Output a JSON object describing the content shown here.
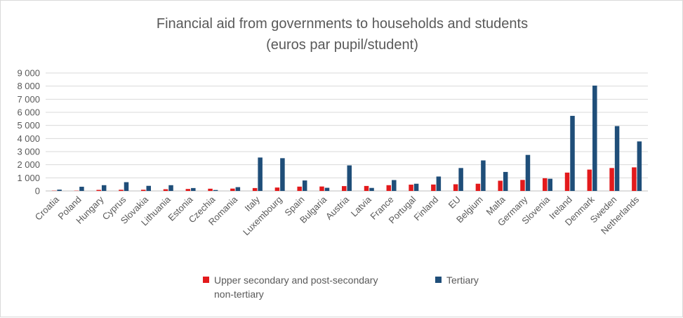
{
  "chart_data": {
    "type": "bar",
    "title": "Financial aid from governments to households and students",
    "subtitle": "(euros par pupil/student)",
    "categories": [
      "Croatia",
      "Poland",
      "Hungary",
      "Cyprus",
      "Slovakia",
      "Lithuania",
      "Estonia",
      "Czechia",
      "Romania",
      "Italy",
      "Luxembourg",
      "Spain",
      "Bulgaria",
      "Austria",
      "Latvia",
      "France",
      "Portugal",
      "Finland",
      "EU",
      "Belgium",
      "Malta",
      "Germany",
      "Slovenia",
      "Ireland",
      "Denmark",
      "Sweden",
      "Netherlands"
    ],
    "series": [
      {
        "name": "Upper secondary and post-secondary non-tertiary",
        "color": "#e31a1c",
        "values": [
          20,
          20,
          80,
          90,
          90,
          130,
          150,
          170,
          180,
          220,
          260,
          330,
          340,
          370,
          380,
          440,
          480,
          490,
          510,
          550,
          780,
          840,
          970,
          1400,
          1630,
          1750,
          1800
        ]
      },
      {
        "name": "Tertiary",
        "color": "#1f4e79",
        "values": [
          100,
          320,
          440,
          670,
          390,
          440,
          220,
          70,
          290,
          2550,
          2500,
          800,
          240,
          1950,
          230,
          830,
          550,
          1100,
          1750,
          2330,
          1450,
          2750,
          930,
          5730,
          8040,
          4950,
          3780
        ]
      }
    ],
    "ylim": [
      0,
      9000
    ],
    "yticks": [
      "0",
      "1 000",
      "2 000",
      "3 000",
      "4 000",
      "5 000",
      "6 000",
      "7 000",
      "8 000",
      "9 000"
    ],
    "grid": true,
    "legend_position": "bottom"
  },
  "legend": {
    "series1_line1": "Upper secondary and post-secondary",
    "series1_line2": "non-tertiary",
    "series2": "Tertiary"
  }
}
